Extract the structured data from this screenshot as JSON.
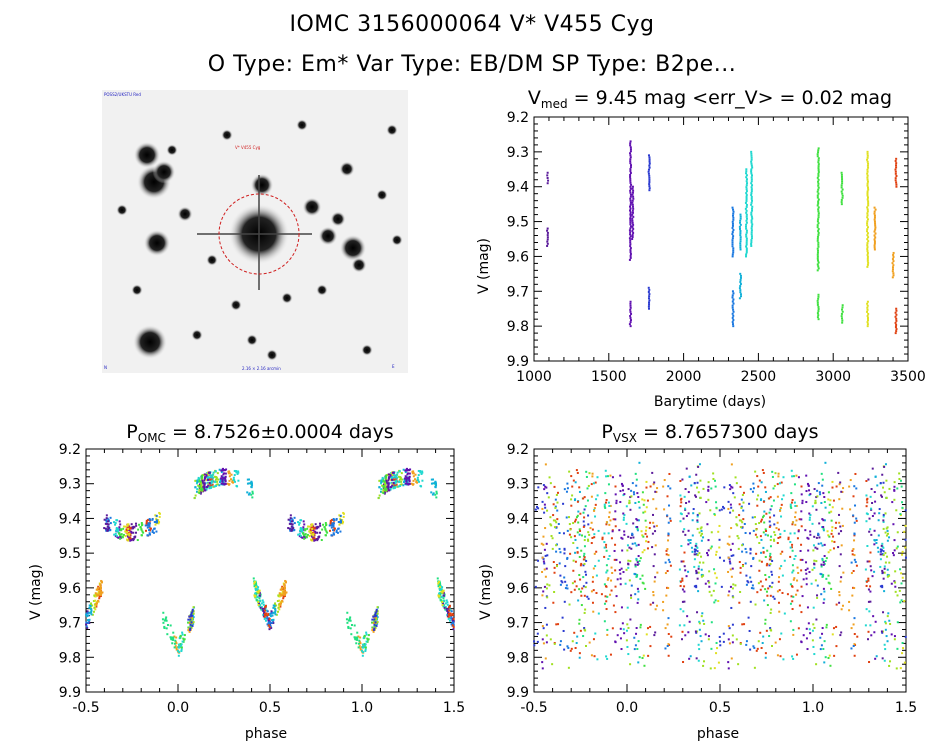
{
  "header": {
    "line1": "IOMC 3156000064    V* V455 Cyg",
    "line2": "O Type: Em*  Var Type: EB/DM  SP Type: B2pe..."
  },
  "finder_chart": {
    "top_left_label": "POSS2/UKSTU Red",
    "bottom_left_label": "N",
    "bottom_center_label": "2.16 × 2.16 arcmin",
    "bottom_right_label": "E",
    "target_label": "V* V455 Cyg"
  },
  "colors": {
    "circle": "#d02020",
    "cycles": [
      "#5a1a9a",
      "#6010b0",
      "#2a3ad0",
      "#1a78e0",
      "#10b0d8",
      "#20d8d0",
      "#20e080",
      "#40e040",
      "#a0e020",
      "#e0e020",
      "#f0a020",
      "#e04010"
    ]
  },
  "chart_data": [
    {
      "type": "scatter",
      "id": "lightcurve",
      "title_main": "V",
      "title_sub": "med",
      "title_rest": " = 9.45 mag <err_V> = 0.02 mag",
      "xlabel": "Barytime (days)",
      "ylabel": "V (mag)",
      "xlim": [
        1000,
        3500
      ],
      "ylim": [
        9.9,
        9.2
      ],
      "xticks": [
        1000,
        1500,
        2000,
        2500,
        3000,
        3500
      ],
      "yticks": [
        9.2,
        9.3,
        9.4,
        9.5,
        9.6,
        9.7,
        9.8,
        9.9
      ],
      "segments": [
        {
          "t": 1090,
          "v": [
            [
              9.36,
              9.39
            ],
            [
              9.52,
              9.57
            ]
          ],
          "c": 0
        },
        {
          "t": 1645,
          "v": [
            [
              9.27,
              9.61
            ],
            [
              9.73,
              9.8
            ]
          ],
          "c": 1
        },
        {
          "t": 1660,
          "v": [
            [
              9.4,
              9.55
            ]
          ],
          "c": 1
        },
        {
          "t": 1770,
          "v": [
            [
              9.31,
              9.41
            ],
            [
              9.69,
              9.75
            ]
          ],
          "c": 2
        },
        {
          "t": 2330,
          "v": [
            [
              9.46,
              9.6
            ],
            [
              9.7,
              9.8
            ]
          ],
          "c": 3
        },
        {
          "t": 2380,
          "v": [
            [
              9.48,
              9.58
            ],
            [
              9.65,
              9.72
            ]
          ],
          "c": 4
        },
        {
          "t": 2420,
          "v": [
            [
              9.35,
              9.6
            ]
          ],
          "c": 5
        },
        {
          "t": 2455,
          "v": [
            [
              9.3,
              9.57
            ]
          ],
          "c": 5
        },
        {
          "t": 2900,
          "v": [
            [
              9.29,
              9.64
            ],
            [
              9.71,
              9.78
            ]
          ],
          "c": 7
        },
        {
          "t": 3060,
          "v": [
            [
              9.36,
              9.45
            ],
            [
              9.74,
              9.79
            ]
          ],
          "c": 7
        },
        {
          "t": 3230,
          "v": [
            [
              9.3,
              9.63
            ],
            [
              9.73,
              9.8
            ]
          ],
          "c": 9
        },
        {
          "t": 3280,
          "v": [
            [
              9.46,
              9.58
            ]
          ],
          "c": 10
        },
        {
          "t": 3400,
          "v": [
            [
              9.59,
              9.66
            ]
          ],
          "c": 10
        },
        {
          "t": 3420,
          "v": [
            [
              9.32,
              9.4
            ],
            [
              9.75,
              9.82
            ]
          ],
          "c": 11
        }
      ]
    },
    {
      "type": "scatter",
      "id": "phase_omc",
      "title_main": "P",
      "title_sub": "OMC",
      "title_rest": " = 8.7526±0.0004 days",
      "xlabel": "phase",
      "ylabel": "V (mag)",
      "xlim": [
        -0.5,
        1.5
      ],
      "ylim": [
        9.9,
        9.2
      ],
      "xticks": [
        -0.5,
        0.0,
        0.5,
        1.0,
        1.5
      ],
      "yticks": [
        9.2,
        9.3,
        9.4,
        9.5,
        9.6,
        9.7,
        9.8,
        9.9
      ],
      "folded": true
    },
    {
      "type": "scatter",
      "id": "phase_vsx",
      "title_main": "P",
      "title_sub": "VSX",
      "title_rest": " = 8.7657300 days",
      "xlabel": "phase",
      "ylabel": "V (mag)",
      "xlim": [
        -0.5,
        1.5
      ],
      "ylim": [
        9.9,
        9.2
      ],
      "xticks": [
        -0.5,
        0.0,
        0.5,
        1.0,
        1.5
      ],
      "yticks": [
        9.2,
        9.3,
        9.4,
        9.5,
        9.6,
        9.7,
        9.8,
        9.9
      ],
      "folded": false
    }
  ]
}
